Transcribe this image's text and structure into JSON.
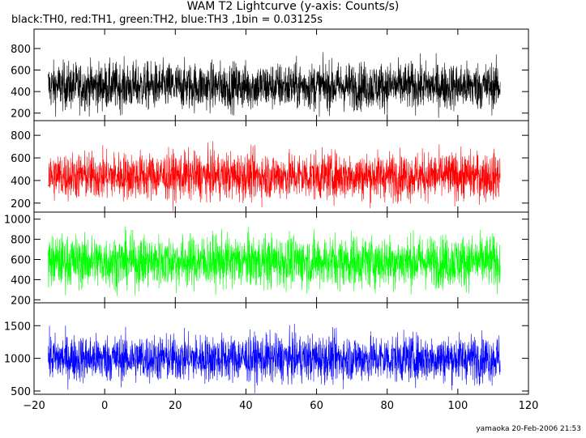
{
  "title": "WAM T2 Lightcurve (y-axis: Counts/s)",
  "subtitle": "black:TH0, red:TH1, green:TH2, blue:TH3 ,1bin = 0.03125s",
  "footer": "yamaoka 20-Feb-2006 21:53",
  "chart_data": {
    "type": "line",
    "x_range": [
      -20,
      120
    ],
    "x_ticks": [
      -20,
      0,
      20,
      40,
      60,
      80,
      100,
      120
    ],
    "x_data_range": [
      -16,
      112
    ],
    "panels": [
      {
        "series": "TH0",
        "color": "#000000",
        "ylim": [
          130,
          980
        ],
        "y_ticks": [
          200,
          400,
          600,
          800
        ],
        "mean": 450,
        "spread": 110
      },
      {
        "series": "TH1",
        "color": "#ff0000",
        "ylim": [
          120,
          930
        ],
        "y_ticks": [
          200,
          400,
          600,
          800
        ],
        "mean": 440,
        "spread": 105
      },
      {
        "series": "TH2",
        "color": "#00ff00",
        "ylim": [
          170,
          1070
        ],
        "y_ticks": [
          200,
          400,
          600,
          800,
          1000
        ],
        "mean": 580,
        "spread": 130
      },
      {
        "series": "TH3",
        "color": "#0000ff",
        "ylim": [
          450,
          1850
        ],
        "y_ticks": [
          500,
          1000,
          1500
        ],
        "mean": 1000,
        "spread": 180
      }
    ]
  }
}
